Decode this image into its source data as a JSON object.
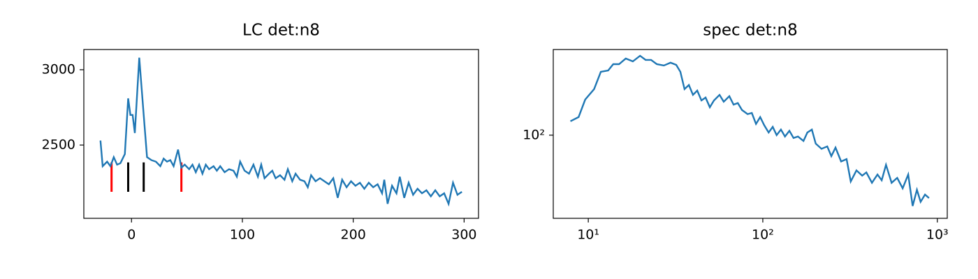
{
  "chart_data": [
    {
      "type": "line",
      "title": "LC det:n8",
      "color": "#1f77b4",
      "x": [
        -28,
        -26,
        -22,
        -19,
        -16,
        -13,
        -10,
        -6,
        -3,
        -1,
        1,
        3,
        7,
        11,
        14,
        18,
        22,
        26,
        29,
        32,
        35,
        38,
        42,
        45,
        48,
        52,
        55,
        58,
        61,
        64,
        67,
        70,
        74,
        77,
        80,
        84,
        88,
        92,
        95,
        98,
        102,
        106,
        110,
        114,
        117,
        120,
        124,
        127,
        130,
        134,
        138,
        141,
        145,
        148,
        152,
        156,
        159,
        162,
        166,
        170,
        174,
        178,
        182,
        186,
        190,
        194,
        198,
        202,
        206,
        210,
        214,
        218,
        222,
        226,
        228,
        231,
        235,
        239,
        242,
        246,
        250,
        254,
        258,
        262,
        266,
        270,
        274,
        278,
        282,
        286,
        290,
        294,
        298
      ],
      "values": [
        2530,
        2360,
        2390,
        2360,
        2420,
        2370,
        2380,
        2440,
        2810,
        2700,
        2700,
        2580,
        3080,
        2700,
        2420,
        2400,
        2390,
        2360,
        2410,
        2390,
        2400,
        2360,
        2470,
        2350,
        2370,
        2340,
        2370,
        2320,
        2370,
        2310,
        2370,
        2340,
        2360,
        2330,
        2360,
        2320,
        2340,
        2330,
        2290,
        2390,
        2330,
        2310,
        2370,
        2290,
        2370,
        2280,
        2310,
        2330,
        2280,
        2300,
        2270,
        2340,
        2260,
        2310,
        2270,
        2260,
        2220,
        2300,
        2260,
        2280,
        2260,
        2240,
        2280,
        2150,
        2270,
        2220,
        2260,
        2230,
        2250,
        2210,
        2250,
        2220,
        2240,
        2180,
        2270,
        2110,
        2230,
        2180,
        2290,
        2150,
        2250,
        2170,
        2210,
        2180,
        2200,
        2160,
        2200,
        2160,
        2180,
        2110,
        2250,
        2170,
        2190
      ],
      "markers": [
        {
          "x": -18,
          "color": "#ff0000"
        },
        {
          "x": -3,
          "color": "#000000"
        },
        {
          "x": 11,
          "color": "#000000"
        },
        {
          "x": 45,
          "color": "#ff0000"
        }
      ],
      "marker_range": [
        2190,
        2385
      ],
      "xlim": [
        -43,
        313
      ],
      "ylim": [
        2014,
        3134
      ],
      "xticks": [
        0,
        100,
        200,
        300
      ],
      "yticks": [
        2500,
        3000
      ]
    },
    {
      "type": "line",
      "title": "spec det:n8",
      "color": "#1f77b4",
      "xscale": "log",
      "yscale": "log",
      "x": [
        7.9,
        8.8,
        9.6,
        10.8,
        11.8,
        13.0,
        13.9,
        15.0,
        16.4,
        18.0,
        19.8,
        21.3,
        22.9,
        24.7,
        27.1,
        29.6,
        31.9,
        33.7,
        35.6,
        37.7,
        39.8,
        42.1,
        44.5,
        47.0,
        49.7,
        52.5,
        56.5,
        59.7,
        64.3,
        68,
        71.9,
        76,
        81.8,
        86.5,
        91.4,
        96.6,
        102,
        108,
        114,
        120,
        127,
        134,
        142,
        150,
        159,
        171,
        180,
        191,
        201,
        217,
        234,
        247,
        261,
        281,
        302,
        319,
        344,
        371,
        392,
        422,
        454,
        480,
        508,
        547,
        589,
        633,
        681,
        722,
        764,
        802,
        850,
        896
      ],
      "values": [
        136,
        149,
        219,
        276,
        404,
        416,
        478,
        478,
        541,
        508,
        575,
        525,
        525,
        478,
        464,
        494,
        471,
        404,
        276,
        302,
        243,
        267,
        215,
        229,
        185,
        215,
        243,
        209,
        236,
        196,
        203,
        174,
        159,
        163,
        128,
        149,
        124,
        106,
        120,
        100,
        113,
        97,
        110,
        94,
        97,
        88,
        106,
        113,
        83,
        74,
        78,
        63,
        76,
        56,
        59,
        36,
        46,
        41,
        44,
        35,
        42,
        37,
        52,
        35,
        39,
        31,
        42,
        21,
        30,
        23,
        27,
        25
      ],
      "xlim": [
        6.3,
        1140
      ],
      "ylim": [
        16,
        660
      ],
      "xticks": [
        {
          "value": 10,
          "label": "10¹"
        },
        {
          "value": 100,
          "label": "10²"
        },
        {
          "value": 1000,
          "label": "10³"
        }
      ],
      "yticks": [
        {
          "value": 100,
          "label": "10²"
        }
      ]
    }
  ]
}
